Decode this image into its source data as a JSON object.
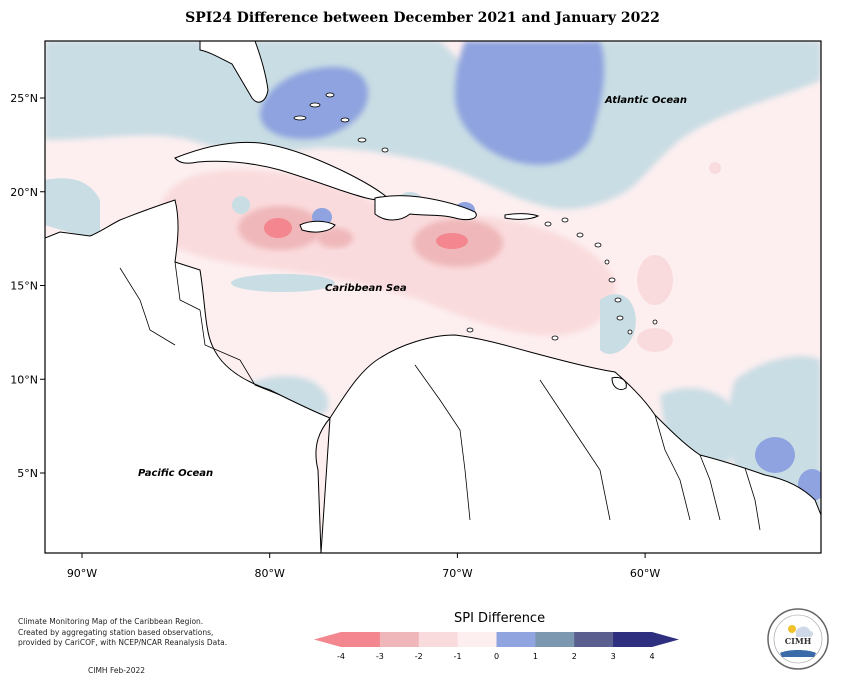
{
  "title": "SPI24 Difference between December 2021 and January 2022",
  "map": {
    "lon_ticks": [
      "90°W",
      "80°W",
      "70°W",
      "60°W"
    ],
    "lat_ticks": [
      "25°N",
      "20°N",
      "15°N",
      "10°N",
      "5°N"
    ],
    "labels": {
      "atlantic": "Atlantic Ocean",
      "caribbean": "Caribbean Sea",
      "pacific": "Pacific Ocean"
    }
  },
  "legend": {
    "title": "SPI Difference",
    "ticks": [
      "-4",
      "-3",
      "-2",
      "-1",
      "0",
      "1",
      "2",
      "3",
      "4"
    ],
    "colors": [
      "#f3868e",
      "#efb7b9",
      "#fadbdd",
      "#fdefef",
      "#cadee4",
      "#90a5df",
      "#7b98b0",
      "#5b5f8f",
      "#2e2f7f"
    ]
  },
  "footnote": {
    "lines": [
      "Climate Monitoring Map of the Caribbean Region.",
      "Created by aggregating station based observations,",
      "provided by CariCOF, with NCEP/NCAR Reanalysis Data."
    ],
    "credit": "CIMH Feb-2022"
  },
  "logo": {
    "name": "CIMH"
  }
}
